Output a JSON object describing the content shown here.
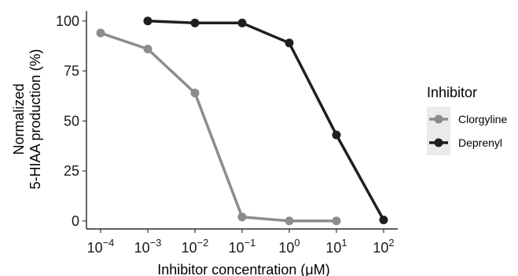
{
  "chart_data": {
    "type": "line",
    "xlabel": "Inhibitor concentration (μM)",
    "ylabel_lines": [
      "Normalized",
      "5-HIAA production (%)"
    ],
    "x_scale": "log10",
    "xlim_exponent": [
      -4,
      2
    ],
    "x_ticks": [
      {
        "base": "10",
        "exp": "−4",
        "value": 0.0001
      },
      {
        "base": "10",
        "exp": "−3",
        "value": 0.001
      },
      {
        "base": "10",
        "exp": "−2",
        "value": 0.01
      },
      {
        "base": "10",
        "exp": "−1",
        "value": 0.1
      },
      {
        "base": "10",
        "exp": "0",
        "value": 1
      },
      {
        "base": "10",
        "exp": "1",
        "value": 10
      },
      {
        "base": "10",
        "exp": "2",
        "value": 100
      }
    ],
    "ylim": [
      -4,
      105
    ],
    "y_ticks": [
      "0",
      "25",
      "50",
      "75",
      "100"
    ],
    "grid": false,
    "legend": {
      "title": "Inhibitor",
      "placement": "right"
    },
    "series": [
      {
        "name": "Clorgyline",
        "color": "#8c8c8c",
        "x": [
          0.0001,
          0.001,
          0.01,
          0.1,
          1,
          10
        ],
        "y": [
          94,
          86,
          64,
          2,
          0,
          0
        ]
      },
      {
        "name": "Deprenyl",
        "color": "#1f1f1f",
        "x": [
          0.001,
          0.01,
          0.1,
          1,
          10,
          100
        ],
        "y": [
          100,
          99,
          99,
          89,
          43,
          0.5
        ]
      }
    ]
  }
}
